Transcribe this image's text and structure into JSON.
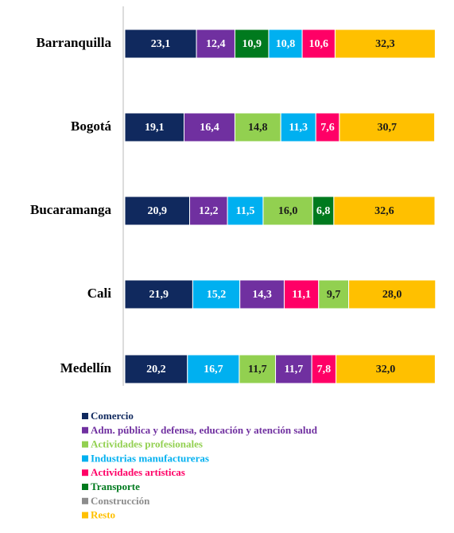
{
  "chart_data": {
    "type": "stacked-bar-horizontal",
    "xlim": [
      0,
      100
    ],
    "categories": [
      "Barranquilla",
      "Bogotá",
      "Bucaramanga",
      "Cali",
      "Medellín"
    ],
    "series": [
      {
        "name": "Comercio",
        "color": "#10295e"
      },
      {
        "name": "Adm. pública y defensa, educación y atención salud",
        "color": "#7030a0"
      },
      {
        "name": "Actividades profesionales",
        "color": "#92d050"
      },
      {
        "name": "Industrias manufactureras",
        "color": "#00b0f0"
      },
      {
        "name": "Actividades artísticas",
        "color": "#ff0066"
      },
      {
        "name": "Transporte",
        "color": "#007a1e"
      },
      {
        "name": "Construcción",
        "color": "#8c8c8c"
      },
      {
        "name": "Resto",
        "color": "#ffc000"
      }
    ],
    "stacks": [
      [
        {
          "name": "Comercio",
          "value": 23.1,
          "label": "23,1"
        },
        {
          "name": "Adm. pública y defensa, educación y atención salud",
          "value": 12.4,
          "label": "12,4"
        },
        {
          "name": "Transporte",
          "value": 10.9,
          "label": "10,9"
        },
        {
          "name": "Industrias manufactureras",
          "value": 10.8,
          "label": "10,8"
        },
        {
          "name": "Actividades artísticas",
          "value": 10.6,
          "label": "10,6"
        },
        {
          "name": "Resto",
          "value": 32.3,
          "label": "32,3"
        }
      ],
      [
        {
          "name": "Comercio",
          "value": 19.1,
          "label": "19,1"
        },
        {
          "name": "Adm. pública y defensa, educación y atención salud",
          "value": 16.4,
          "label": "16,4"
        },
        {
          "name": "Actividades profesionales",
          "value": 14.8,
          "label": "14,8"
        },
        {
          "name": "Industrias manufactureras",
          "value": 11.3,
          "label": "11,3"
        },
        {
          "name": "Actividades artísticas",
          "value": 7.6,
          "label": "7,6"
        },
        {
          "name": "Resto",
          "value": 30.7,
          "label": "30,7"
        }
      ],
      [
        {
          "name": "Comercio",
          "value": 20.9,
          "label": "20,9"
        },
        {
          "name": "Adm. pública y defensa, educación y atención salud",
          "value": 12.2,
          "label": "12,2"
        },
        {
          "name": "Industrias manufactureras",
          "value": 11.5,
          "label": "11,5"
        },
        {
          "name": "Actividades profesionales",
          "value": 16.0,
          "label": "16,0"
        },
        {
          "name": "Transporte",
          "value": 6.8,
          "label": "6,8"
        },
        {
          "name": "Resto",
          "value": 32.6,
          "label": "32,6"
        }
      ],
      [
        {
          "name": "Comercio",
          "value": 21.9,
          "label": "21,9"
        },
        {
          "name": "Industrias manufactureras",
          "value": 15.2,
          "label": "15,2"
        },
        {
          "name": "Adm. pública y defensa, educación y atención salud",
          "value": 14.3,
          "label": "14,3"
        },
        {
          "name": "Actividades artísticas",
          "value": 11.1,
          "label": "11,1"
        },
        {
          "name": "Actividades profesionales",
          "value": 9.7,
          "label": "9,7"
        },
        {
          "name": "Resto",
          "value": 28.0,
          "label": "28,0"
        }
      ],
      [
        {
          "name": "Comercio",
          "value": 20.2,
          "label": "20,2"
        },
        {
          "name": "Industrias manufactureras",
          "value": 16.7,
          "label": "16,7"
        },
        {
          "name": "Actividades profesionales",
          "value": 11.7,
          "label": "11,7"
        },
        {
          "name": "Adm. pública y defensa, educación y atención salud",
          "value": 11.7,
          "label": "11,7"
        },
        {
          "name": "Actividades artísticas",
          "value": 7.8,
          "label": "7,8"
        },
        {
          "name": "Resto",
          "value": 32.0,
          "label": "32,0"
        }
      ]
    ]
  }
}
